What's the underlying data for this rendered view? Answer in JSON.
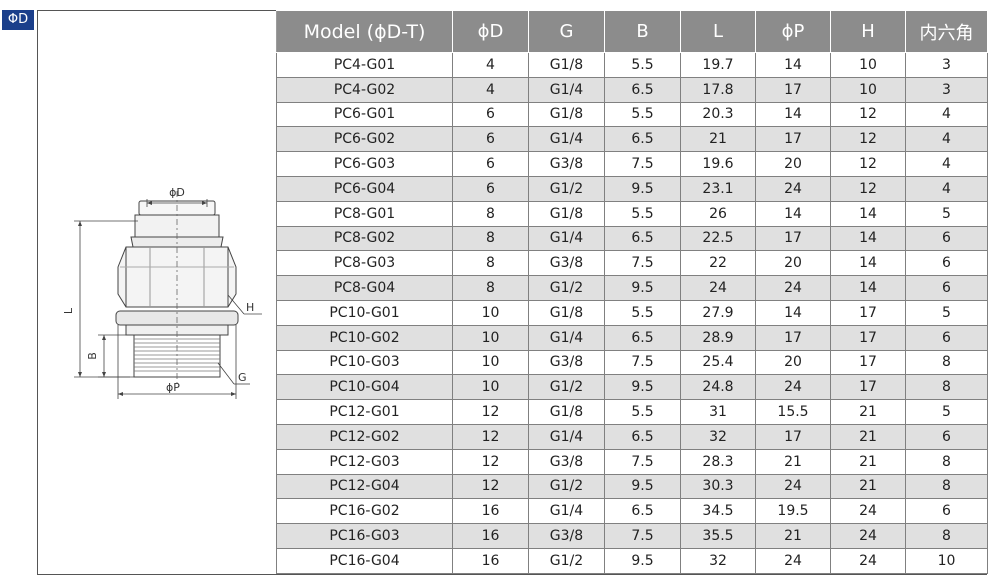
{
  "badge": "ΦD",
  "drawing_labels": {
    "phiD": "ϕD",
    "L": "L",
    "H": "H",
    "B": "B",
    "G": "G",
    "phiP": "ϕP"
  },
  "table": {
    "headers": [
      "Model (ϕD-T)",
      "ϕD",
      "G",
      "B",
      "L",
      "ϕP",
      "H",
      "内六角"
    ],
    "rows": [
      [
        "PC4-G01",
        "4",
        "G1/8",
        "5.5",
        "19.7",
        "14",
        "10",
        "3"
      ],
      [
        "PC4-G02",
        "4",
        "G1/4",
        "6.5",
        "17.8",
        "17",
        "10",
        "3"
      ],
      [
        "PC6-G01",
        "6",
        "G1/8",
        "5.5",
        "20.3",
        "14",
        "12",
        "4"
      ],
      [
        "PC6-G02",
        "6",
        "G1/4",
        "6.5",
        "21",
        "17",
        "12",
        "4"
      ],
      [
        "PC6-G03",
        "6",
        "G3/8",
        "7.5",
        "19.6",
        "20",
        "12",
        "4"
      ],
      [
        "PC6-G04",
        "6",
        "G1/2",
        "9.5",
        "23.1",
        "24",
        "12",
        "4"
      ],
      [
        "PC8-G01",
        "8",
        "G1/8",
        "5.5",
        "26",
        "14",
        "14",
        "5"
      ],
      [
        "PC8-G02",
        "8",
        "G1/4",
        "6.5",
        "22.5",
        "17",
        "14",
        "6"
      ],
      [
        "PC8-G03",
        "8",
        "G3/8",
        "7.5",
        "22",
        "20",
        "14",
        "6"
      ],
      [
        "PC8-G04",
        "8",
        "G1/2",
        "9.5",
        "24",
        "24",
        "14",
        "6"
      ],
      [
        "PC10-G01",
        "10",
        "G1/8",
        "5.5",
        "27.9",
        "14",
        "17",
        "5"
      ],
      [
        "PC10-G02",
        "10",
        "G1/4",
        "6.5",
        "28.9",
        "17",
        "17",
        "6"
      ],
      [
        "PC10-G03",
        "10",
        "G3/8",
        "7.5",
        "25.4",
        "20",
        "17",
        "8"
      ],
      [
        "PC10-G04",
        "10",
        "G1/2",
        "9.5",
        "24.8",
        "24",
        "17",
        "8"
      ],
      [
        "PC12-G01",
        "12",
        "G1/8",
        "5.5",
        "31",
        "15.5",
        "21",
        "5"
      ],
      [
        "PC12-G02",
        "12",
        "G1/4",
        "6.5",
        "32",
        "17",
        "21",
        "6"
      ],
      [
        "PC12-G03",
        "12",
        "G3/8",
        "7.5",
        "28.3",
        "21",
        "21",
        "8"
      ],
      [
        "PC12-G04",
        "12",
        "G1/2",
        "9.5",
        "30.3",
        "24",
        "21",
        "8"
      ],
      [
        "PC16-G02",
        "16",
        "G1/4",
        "6.5",
        "34.5",
        "19.5",
        "24",
        "6"
      ],
      [
        "PC16-G03",
        "16",
        "G3/8",
        "7.5",
        "35.5",
        "21",
        "24",
        "8"
      ],
      [
        "PC16-G04",
        "16",
        "G1/2",
        "9.5",
        "32",
        "24",
        "24",
        "10"
      ]
    ]
  }
}
